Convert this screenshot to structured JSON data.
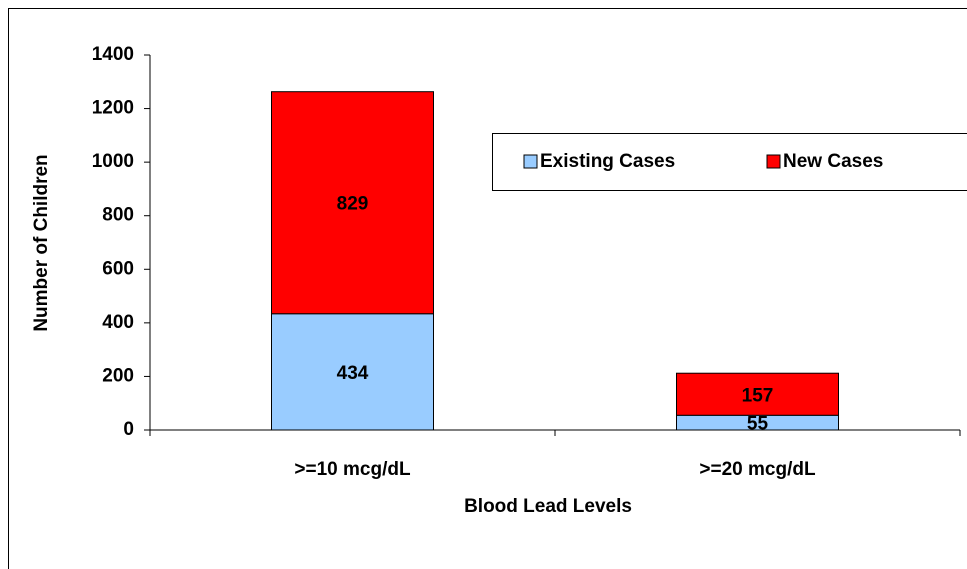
{
  "chart_data": {
    "type": "stacked_bar",
    "categories": [
      ">=10 mcg/dL",
      ">=20 mcg/dL"
    ],
    "series": [
      {
        "name": "Existing Cases",
        "color": "#99ccff",
        "values": [
          434,
          55
        ]
      },
      {
        "name": "New Cases",
        "color": "#ff0000",
        "values": [
          829,
          157
        ]
      }
    ],
    "x_label": "Blood Lead Levels",
    "y_label": "Number of Children",
    "ylim": [
      0,
      1400
    ],
    "yticks": [
      0,
      200,
      400,
      600,
      800,
      1000,
      1200,
      1400
    ],
    "legend": "upper right"
  }
}
